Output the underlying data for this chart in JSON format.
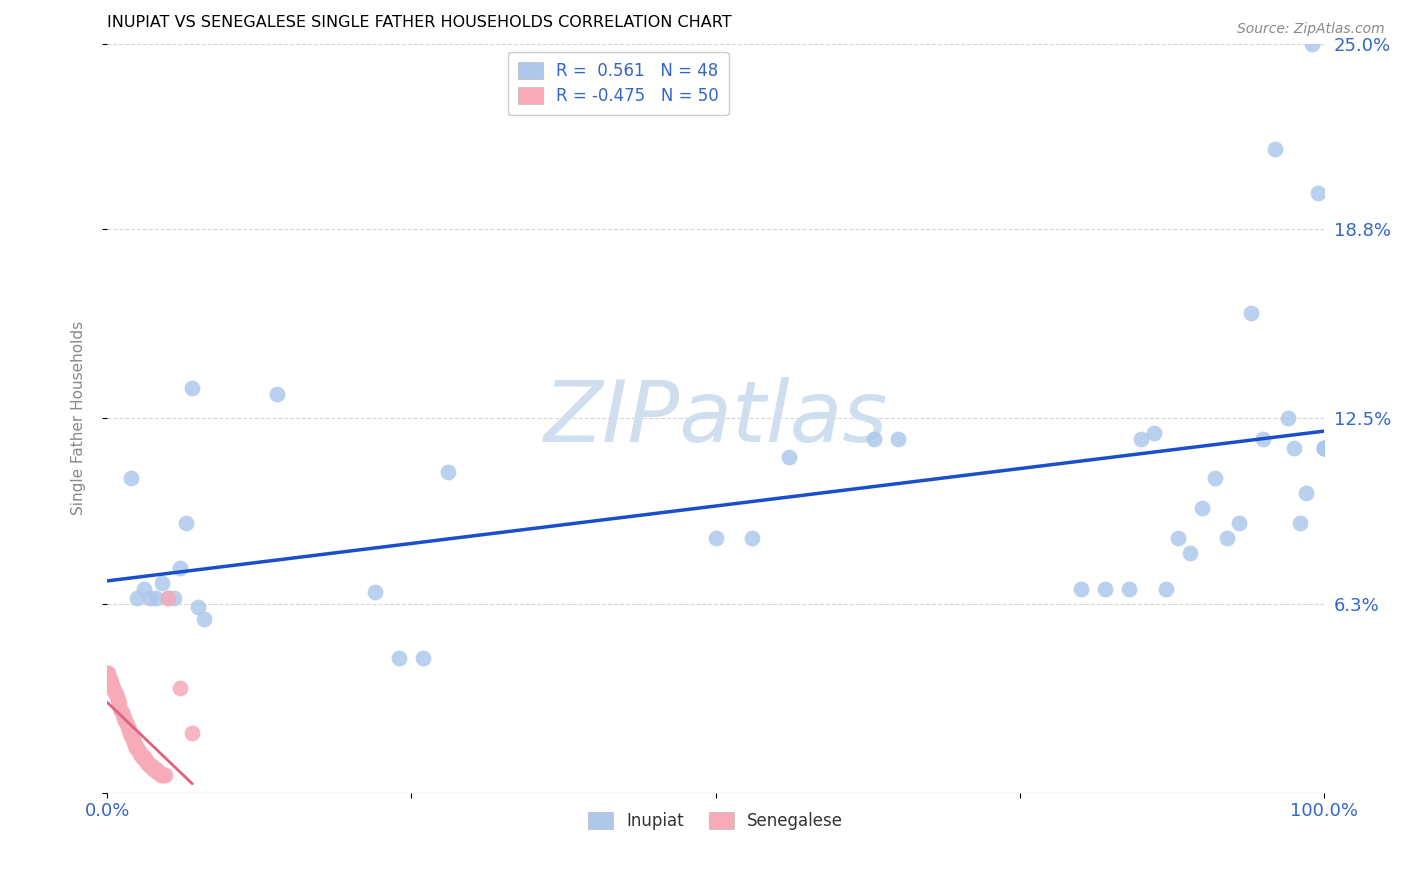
{
  "title": "INUPIAT VS SENEGALESE SINGLE FATHER HOUSEHOLDS CORRELATION CHART",
  "source": "Source: ZipAtlas.com",
  "ylabel": "Single Father Households",
  "xlim": [
    0,
    1.0
  ],
  "ylim": [
    0,
    0.25
  ],
  "ytick_vals": [
    0.0,
    0.063,
    0.125,
    0.188,
    0.25
  ],
  "ytick_labels": [
    "",
    "6.3%",
    "12.5%",
    "18.8%",
    "25.0%"
  ],
  "xtick_vals": [
    0.0,
    0.25,
    0.5,
    0.75,
    1.0
  ],
  "xtick_labels": [
    "0.0%",
    "",
    "",
    "",
    "100.0%"
  ],
  "inupiat_R": 0.561,
  "inupiat_N": 48,
  "senegalese_R": -0.475,
  "senegalese_N": 50,
  "inupiat_color": "#adc8eb",
  "senegalese_color": "#f7aab8",
  "inupiat_line_color": "#1a4fcc",
  "senegalese_line_color": "#e06080",
  "tick_color": "#3366cc",
  "title_color": "#000000",
  "title_fontsize": 11.5,
  "watermark_text": "ZIPatlas",
  "watermark_color": "#d0dff0",
  "background_color": "#ffffff",
  "grid_color": "#cccccc",
  "inupiat_x": [
    0.02,
    0.025,
    0.03,
    0.035,
    0.04,
    0.045,
    0.05,
    0.055,
    0.06,
    0.065,
    0.07,
    0.075,
    0.08,
    0.14,
    0.22,
    0.24,
    0.26,
    0.28,
    0.5,
    0.53,
    0.56,
    0.63,
    0.65,
    0.8,
    0.82,
    0.84,
    0.85,
    0.86,
    0.87,
    0.88,
    0.89,
    0.9,
    0.91,
    0.92,
    0.93,
    0.94,
    0.95,
    0.96,
    0.97,
    0.975,
    0.98,
    0.985,
    0.99,
    0.995,
    1.0,
    1.0,
    1.0,
    1.0
  ],
  "inupiat_y": [
    0.105,
    0.065,
    0.068,
    0.065,
    0.065,
    0.07,
    0.065,
    0.065,
    0.075,
    0.09,
    0.135,
    0.062,
    0.058,
    0.133,
    0.067,
    0.045,
    0.045,
    0.107,
    0.085,
    0.085,
    0.112,
    0.118,
    0.118,
    0.068,
    0.068,
    0.068,
    0.118,
    0.12,
    0.068,
    0.085,
    0.08,
    0.095,
    0.105,
    0.085,
    0.09,
    0.16,
    0.118,
    0.215,
    0.125,
    0.115,
    0.09,
    0.1,
    0.25,
    0.2,
    0.115,
    0.115,
    0.115,
    0.115
  ],
  "senegalese_x": [
    0.0,
    0.001,
    0.002,
    0.003,
    0.004,
    0.005,
    0.006,
    0.007,
    0.008,
    0.009,
    0.01,
    0.011,
    0.012,
    0.013,
    0.014,
    0.015,
    0.016,
    0.017,
    0.018,
    0.019,
    0.02,
    0.021,
    0.022,
    0.023,
    0.024,
    0.025,
    0.026,
    0.027,
    0.028,
    0.029,
    0.03,
    0.031,
    0.032,
    0.033,
    0.034,
    0.035,
    0.036,
    0.037,
    0.038,
    0.039,
    0.04,
    0.041,
    0.042,
    0.043,
    0.044,
    0.046,
    0.048,
    0.05,
    0.06,
    0.07
  ],
  "senegalese_y": [
    0.04,
    0.04,
    0.038,
    0.037,
    0.036,
    0.035,
    0.034,
    0.033,
    0.032,
    0.031,
    0.03,
    0.028,
    0.027,
    0.026,
    0.025,
    0.024,
    0.023,
    0.022,
    0.021,
    0.02,
    0.019,
    0.018,
    0.017,
    0.016,
    0.015,
    0.015,
    0.014,
    0.013,
    0.013,
    0.012,
    0.012,
    0.011,
    0.011,
    0.01,
    0.01,
    0.009,
    0.009,
    0.009,
    0.008,
    0.008,
    0.008,
    0.007,
    0.007,
    0.007,
    0.006,
    0.006,
    0.006,
    0.065,
    0.035,
    0.02
  ]
}
